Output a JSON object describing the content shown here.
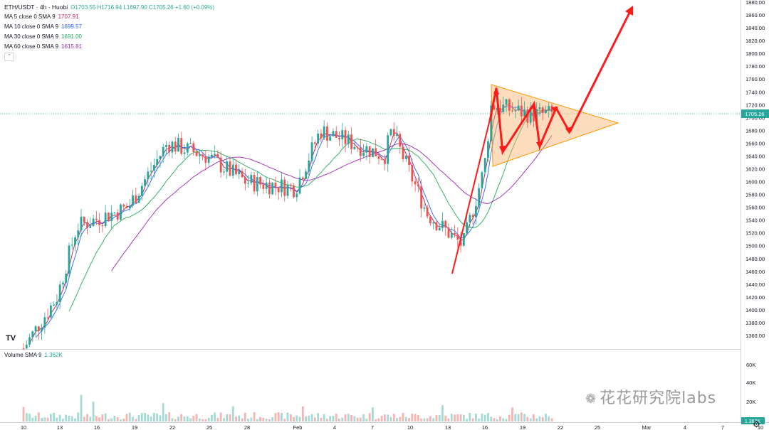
{
  "header": {
    "symbol": "ETH/USDT · 4h · Huobi",
    "ohlc": "O1703.55  H1716.94  L1697.90  C1705.26  +1.60 (+0.09%)"
  },
  "indicators": [
    {
      "label": "MA 5 close 0 SMA 9",
      "value": "1707.91",
      "color": "#c2185b"
    },
    {
      "label": "MA 10 close 0 SMA 9",
      "value": "1699.57",
      "color": "#2962ff"
    },
    {
      "label": "MA 30 close 0 SMA 9",
      "value": "1691.00",
      "color": "#22ab5a"
    },
    {
      "label": "MA 60 close 0 SMA 9",
      "value": "1615.81",
      "color": "#9c27b0"
    }
  ],
  "collapse_icon": "chevron-up-icon",
  "volume": {
    "label": "Volume SMA 9",
    "value": "1.362K",
    "current_tag": "1.362K",
    "scale_labels": [
      "60K",
      "40K",
      "20K"
    ]
  },
  "price_axis": {
    "labels": [
      "1880.00",
      "1860.00",
      "1840.00",
      "1820.00",
      "1800.00",
      "1780.00",
      "1760.00",
      "1740.00",
      "1720.00",
      "1700.00",
      "1680.00",
      "1660.00",
      "1640.00",
      "1620.00",
      "1600.00",
      "1580.00",
      "1560.00",
      "1540.00",
      "1520.00",
      "1500.00",
      "1480.00",
      "1460.00",
      "1440.00",
      "1420.00",
      "1400.00",
      "1380.00",
      "1360.00"
    ],
    "current_price_tag": "1705.26"
  },
  "time_axis": {
    "labels": [
      "10",
      "13",
      "16",
      "19",
      "22",
      "25",
      "28",
      "Feb",
      "4",
      "7",
      "10",
      "13",
      "16",
      "19",
      "22",
      "25",
      "Mar",
      "4",
      "7",
      "10"
    ]
  },
  "watermark": "花花研究院labs",
  "logo": "TV",
  "colors": {
    "up": "#26a69a",
    "down": "#ef5350",
    "arrow": "#ff1a1a",
    "triangle_fill": "#f6b26b",
    "triangle_stroke": "#ff9800"
  },
  "chart_data": {
    "type": "candlestick",
    "title": "ETH/USDT · 4h · Huobi",
    "annotation": "triangle (symmetrical) pattern with drawn zigzag arrows projecting breakout upward",
    "ylim": [
      1340,
      1890
    ],
    "x_axis_dates": [
      "10",
      "13",
      "16",
      "19",
      "22",
      "25",
      "28",
      "Feb",
      "4",
      "7",
      "10",
      "13",
      "16",
      "19",
      "22",
      "25",
      "Mar",
      "4",
      "7",
      "10"
    ],
    "approx_close_path": [
      {
        "date": "10",
        "close": 1340
      },
      {
        "date": "13",
        "close": 1420
      },
      {
        "date": "14",
        "close": 1530
      },
      {
        "date": "19",
        "close": 1560
      },
      {
        "date": "22",
        "close": 1660
      },
      {
        "date": "25",
        "close": 1640
      },
      {
        "date": "28",
        "close": 1600
      },
      {
        "date": "Feb",
        "close": 1590
      },
      {
        "date": "4",
        "close": 1680
      },
      {
        "date": "7",
        "close": 1640
      },
      {
        "date": "8",
        "close": 1680
      },
      {
        "date": "10",
        "close": 1550
      },
      {
        "date": "13",
        "close": 1500
      },
      {
        "date": "16",
        "close": 1620
      },
      {
        "date": "17",
        "close": 1720
      },
      {
        "date": "19",
        "close": 1705
      },
      {
        "date": "21",
        "close": 1705.26
      }
    ],
    "last_price": 1705.26
  }
}
